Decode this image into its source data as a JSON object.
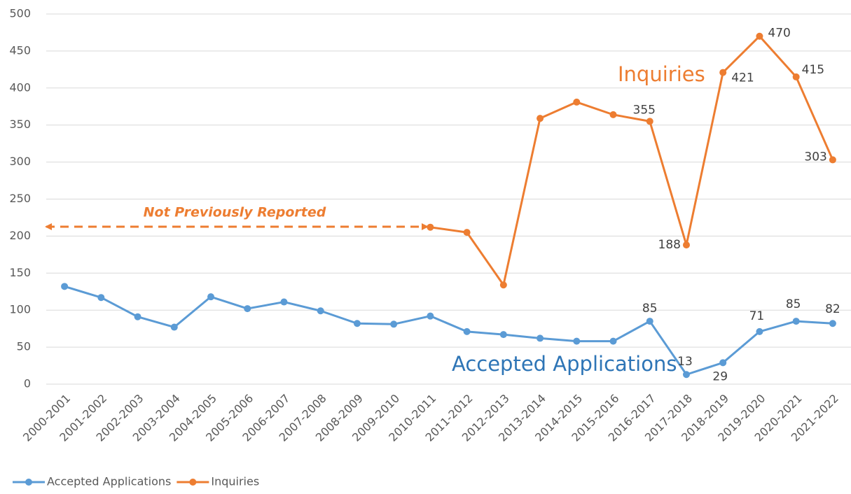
{
  "chart_data": {
    "type": "line",
    "categories": [
      "2000-2001",
      "2001-2002",
      "2002-2003",
      "2003-2004",
      "2004-2005",
      "2005-2006",
      "2006-2007",
      "2007-2008",
      "2008-2009",
      "2009-2010",
      "2010-2011",
      "2011-2012",
      "2012-2013",
      "2013-2014",
      "2014-2015",
      "2015-2016",
      "2016-2017",
      "2017-2018",
      "2018-2019",
      "2019-2020",
      "2020-2021",
      "2021-2022"
    ],
    "series": [
      {
        "name": "Accepted Applications",
        "color": "#5b9bd5",
        "values": [
          132,
          117,
          91,
          77,
          118,
          102,
          111,
          99,
          82,
          81,
          92,
          71,
          67,
          62,
          58,
          58,
          85,
          13,
          29,
          71,
          85,
          82
        ],
        "value_labels": [
          null,
          null,
          null,
          null,
          null,
          null,
          null,
          null,
          null,
          null,
          null,
          null,
          null,
          null,
          null,
          null,
          "85",
          "13",
          "29",
          "71",
          "85",
          "82"
        ]
      },
      {
        "name": "Inquiries",
        "color": "#ed7d31",
        "values": [
          null,
          null,
          null,
          null,
          null,
          null,
          null,
          null,
          null,
          null,
          212,
          205,
          134,
          359,
          381,
          364,
          355,
          188,
          421,
          470,
          415,
          303
        ],
        "value_labels": [
          null,
          null,
          null,
          null,
          null,
          null,
          null,
          null,
          null,
          null,
          null,
          null,
          null,
          null,
          null,
          null,
          "355",
          "188",
          "421",
          "470",
          "415",
          "303"
        ]
      }
    ],
    "annotations": [
      "Inquiries",
      "Accepted Applications",
      "Not Previously Reported"
    ],
    "ylim": [
      0,
      500
    ],
    "yticks": [
      0,
      50,
      100,
      150,
      200,
      250,
      300,
      350,
      400,
      450,
      500
    ],
    "grid": true,
    "legend": "bottom-left"
  }
}
